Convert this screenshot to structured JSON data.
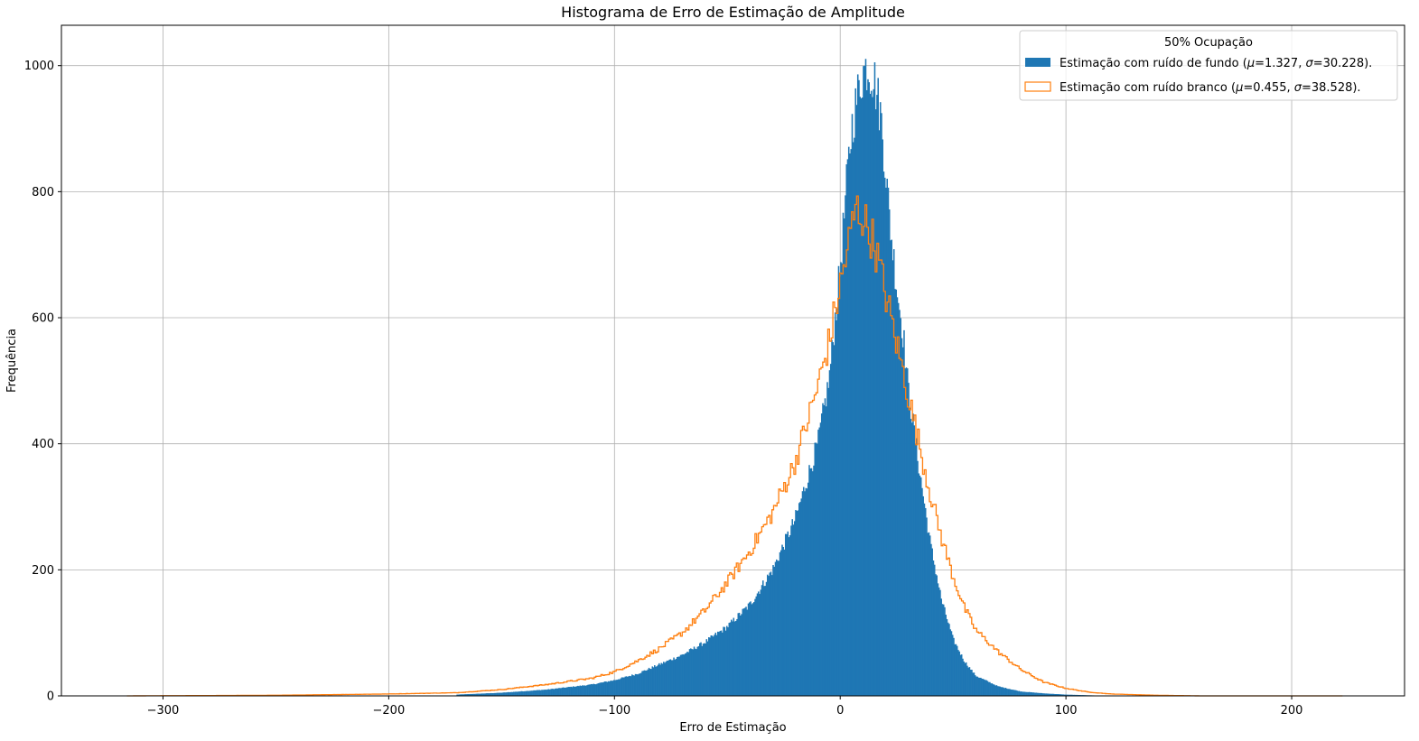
{
  "chart_data": {
    "type": "bar",
    "title": "Histograma de Erro de Estimação de Amplitude",
    "xlabel": "Erro de Estimação",
    "ylabel": "Frequência",
    "xlim": [
      -345,
      250
    ],
    "ylim": [
      0,
      1064
    ],
    "xticks": [
      -300,
      -200,
      -100,
      0,
      100,
      200
    ],
    "xtick_labels": [
      "−300",
      "−200",
      "−100",
      "0",
      "100",
      "200"
    ],
    "yticks": [
      0,
      200,
      400,
      600,
      800,
      1000
    ],
    "ytick_labels": [
      "0",
      "200",
      "400",
      "600",
      "800",
      "1000"
    ],
    "grid": true,
    "legend": {
      "title": "50% Ocupação",
      "placement": "top-right",
      "entries": [
        {
          "prefix": "Estimação com ruído de fundo (",
          "mu_value": "=1.327, ",
          "sigma_value": "=30.228)."
        },
        {
          "prefix": "Estimação com ruído branco (",
          "mu_value": "=0.455, ",
          "sigma_value": "=38.528)."
        }
      ]
    },
    "series": [
      {
        "name": "Estimação com ruído de fundo (μ=1.327, σ=30.228).",
        "kind": "filled-histogram",
        "color": "#1f77b4",
        "x": [
          -170,
          -150,
          -130,
          -110,
          -100,
          -90,
          -80,
          -70,
          -60,
          -50,
          -40,
          -30,
          -20,
          -10,
          -5,
          0,
          3,
          5,
          8,
          10,
          12,
          15,
          18,
          20,
          22,
          25,
          28,
          30,
          35,
          40,
          45,
          50,
          55,
          60,
          70,
          80,
          90,
          100,
          110,
          120
        ],
        "values": [
          2,
          5,
          10,
          18,
          25,
          35,
          50,
          65,
          85,
          110,
          145,
          200,
          280,
          400,
          500,
          680,
          820,
          900,
          960,
          990,
          1000,
          980,
          920,
          840,
          750,
          650,
          570,
          490,
          360,
          240,
          150,
          90,
          55,
          32,
          15,
          7,
          4,
          2,
          1,
          0
        ]
      },
      {
        "name": "Estimação com ruído branco (μ=0.455, σ=38.528).",
        "kind": "step-histogram",
        "color": "#ff7f0e",
        "x": [
          -316,
          -250,
          -200,
          -170,
          -150,
          -130,
          -110,
          -100,
          -90,
          -80,
          -70,
          -60,
          -50,
          -40,
          -30,
          -20,
          -10,
          -5,
          0,
          5,
          7,
          10,
          15,
          20,
          25,
          30,
          35,
          40,
          45,
          50,
          55,
          60,
          70,
          80,
          90,
          100,
          110,
          120,
          140,
          160,
          200,
          222
        ],
        "values": [
          0,
          1,
          3,
          5,
          10,
          18,
          28,
          38,
          55,
          75,
          100,
          135,
          180,
          230,
          290,
          370,
          490,
          560,
          650,
          740,
          775,
          760,
          720,
          640,
          560,
          480,
          400,
          320,
          250,
          190,
          140,
          105,
          70,
          42,
          22,
          12,
          6,
          3,
          1,
          0,
          0,
          0
        ]
      }
    ]
  }
}
